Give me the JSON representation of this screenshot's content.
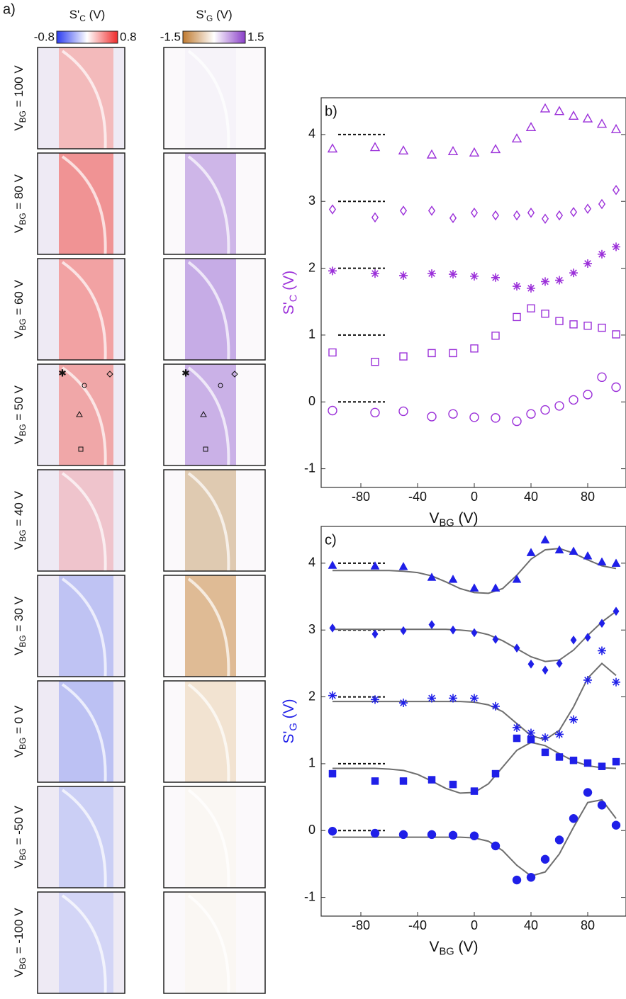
{
  "panel_a": {
    "label": "a)",
    "maps": [
      {
        "title": {
          "text": "S'",
          "sub": "C",
          "after": " (V)"
        },
        "clim": [
          -0.8,
          0.8
        ]
      },
      {
        "title": {
          "text": "S'",
          "sub": "G",
          "after": " (V)"
        },
        "clim": [
          -1.5,
          1.5
        ]
      }
    ],
    "rows": [
      {
        "text": "V",
        "sub": "BG",
        "after": " = 100 V"
      },
      {
        "text": "V",
        "sub": "BG",
        "after": " = 80 V"
      },
      {
        "text": "V",
        "sub": "BG",
        "after": " = 60 V"
      },
      {
        "text": "V",
        "sub": "BG",
        "after": " = 50 V"
      },
      {
        "text": "V",
        "sub": "BG",
        "after": " = 40 V"
      },
      {
        "text": "V",
        "sub": "BG",
        "after": " = 30 V"
      },
      {
        "text": "V",
        "sub": "BG",
        "after": " = 0 V"
      },
      {
        "text": "V",
        "sub": "BG",
        "after": " = -50 V"
      },
      {
        "text": "V",
        "sub": "BG",
        "after": " = -100 V"
      }
    ]
  },
  "chart_data": [
    {
      "type": "scatter",
      "panel_label": "b)",
      "color": "#9b30d9",
      "filled": false,
      "ylabel": {
        "text": "S'",
        "sub": "C",
        "after": " (V)"
      },
      "xlabel": {
        "text": "V",
        "sub": "BG",
        "after": " (V)"
      },
      "xlim": [
        -108,
        107
      ],
      "ylim": [
        -1.28,
        4.55
      ],
      "xticks": [
        -80,
        -40,
        0,
        40,
        80
      ],
      "yticks": [
        -1,
        0,
        1,
        2,
        3,
        4
      ],
      "dashed_levels": [
        0,
        1,
        2,
        3,
        4
      ],
      "dashed_xlim": [
        -96,
        -63
      ],
      "x": [
        -100,
        -70,
        -50,
        -30,
        -15,
        0,
        15,
        30,
        40,
        50,
        60,
        70,
        80,
        90,
        100
      ],
      "series": [
        {
          "marker": "triangle",
          "values": [
            3.79,
            3.81,
            3.76,
            3.7,
            3.75,
            3.73,
            3.78,
            3.94,
            4.11,
            4.39,
            4.35,
            4.28,
            4.24,
            4.16,
            4.08
          ]
        },
        {
          "marker": "diamond",
          "values": [
            2.88,
            2.76,
            2.86,
            2.86,
            2.75,
            2.83,
            2.79,
            2.79,
            2.83,
            2.74,
            2.79,
            2.84,
            2.89,
            2.96,
            3.17
          ]
        },
        {
          "marker": "star",
          "values": [
            1.96,
            1.92,
            1.89,
            1.92,
            1.91,
            1.88,
            1.86,
            1.73,
            1.7,
            1.8,
            1.82,
            1.93,
            2.07,
            2.21,
            2.32
          ]
        },
        {
          "marker": "square",
          "values": [
            0.74,
            0.6,
            0.68,
            0.73,
            0.73,
            0.8,
            0.99,
            1.27,
            1.4,
            1.32,
            1.21,
            1.16,
            1.14,
            1.11,
            1.01
          ]
        },
        {
          "marker": "circle",
          "values": [
            -0.13,
            -0.16,
            -0.14,
            -0.22,
            -0.18,
            -0.23,
            -0.24,
            -0.29,
            -0.18,
            -0.12,
            -0.06,
            0.03,
            0.11,
            0.37,
            0.22
          ]
        }
      ]
    },
    {
      "type": "scatter",
      "panel_label": "c)",
      "color": "#1f1fe8",
      "filled": true,
      "fit_color": "#6e6e6e",
      "ylabel": {
        "text": "S'",
        "sub": "G",
        "after": " (V)"
      },
      "xlabel": {
        "text": "V",
        "sub": "BG",
        "after": " (V)"
      },
      "xlim": [
        -108,
        107
      ],
      "ylim": [
        -1.28,
        4.55
      ],
      "xticks": [
        -80,
        -40,
        0,
        40,
        80
      ],
      "yticks": [
        -1,
        0,
        1,
        2,
        3,
        4
      ],
      "dashed_levels": [
        0,
        1,
        2,
        3,
        4
      ],
      "dashed_xlim": [
        -96,
        -63
      ],
      "x": [
        -100,
        -70,
        -50,
        -30,
        -15,
        0,
        15,
        30,
        40,
        50,
        60,
        70,
        80,
        90,
        100
      ],
      "series": [
        {
          "marker": "triangle",
          "values": [
            3.97,
            3.96,
            3.95,
            3.79,
            3.76,
            3.63,
            3.63,
            3.76,
            4.16,
            4.35,
            4.2,
            4.18,
            4.11,
            4.02,
            4.0
          ]
        },
        {
          "marker": "diamond",
          "values": [
            3.03,
            2.94,
            2.99,
            3.08,
            3.0,
            2.96,
            2.86,
            2.73,
            2.49,
            2.4,
            2.5,
            2.85,
            2.89,
            3.1,
            3.28
          ]
        },
        {
          "marker": "star",
          "values": [
            2.02,
            1.96,
            1.91,
            1.98,
            1.98,
            1.98,
            1.86,
            1.54,
            1.46,
            1.39,
            1.44,
            1.66,
            2.25,
            2.69,
            2.22
          ]
        },
        {
          "marker": "square",
          "values": [
            0.85,
            0.74,
            0.74,
            0.76,
            0.69,
            0.59,
            0.85,
            1.38,
            1.36,
            1.17,
            1.1,
            1.05,
            1.01,
            0.96,
            1.03
          ]
        },
        {
          "marker": "circle",
          "values": [
            -0.01,
            -0.04,
            -0.06,
            -0.06,
            -0.07,
            -0.08,
            -0.23,
            -0.74,
            -0.7,
            -0.43,
            -0.14,
            0.18,
            0.57,
            0.38,
            0.08
          ]
        }
      ],
      "fit_x": [
        -100,
        -90,
        -80,
        -70,
        -60,
        -50,
        -40,
        -30,
        -20,
        -10,
        0,
        10,
        20,
        30,
        40,
        50,
        60,
        70,
        80,
        90,
        100
      ],
      "fits": [
        {
          "values": [
            3.89,
            3.89,
            3.89,
            3.89,
            3.89,
            3.88,
            3.86,
            3.81,
            3.72,
            3.62,
            3.56,
            3.55,
            3.62,
            3.82,
            4.06,
            4.2,
            4.22,
            4.15,
            4.05,
            3.96,
            3.92
          ]
        },
        {
          "values": [
            3.01,
            3.01,
            3.01,
            3.01,
            3.01,
            3.01,
            3.01,
            3.01,
            3.01,
            3.0,
            2.98,
            2.93,
            2.84,
            2.72,
            2.6,
            2.53,
            2.55,
            2.7,
            2.92,
            3.12,
            3.28
          ]
        },
        {
          "values": [
            1.93,
            1.93,
            1.93,
            1.93,
            1.93,
            1.93,
            1.93,
            1.93,
            1.93,
            1.93,
            1.92,
            1.88,
            1.78,
            1.6,
            1.42,
            1.36,
            1.5,
            1.85,
            2.28,
            2.5,
            2.32
          ]
        },
        {
          "values": [
            0.93,
            0.93,
            0.93,
            0.93,
            0.92,
            0.9,
            0.84,
            0.74,
            0.63,
            0.56,
            0.57,
            0.7,
            0.95,
            1.2,
            1.32,
            1.27,
            1.15,
            1.04,
            0.97,
            0.94,
            0.93
          ]
        },
        {
          "values": [
            -0.1,
            -0.1,
            -0.1,
            -0.1,
            -0.1,
            -0.1,
            -0.1,
            -0.1,
            -0.1,
            -0.1,
            -0.11,
            -0.16,
            -0.3,
            -0.52,
            -0.68,
            -0.62,
            -0.35,
            0.05,
            0.42,
            0.46,
            0.18
          ]
        }
      ]
    }
  ]
}
